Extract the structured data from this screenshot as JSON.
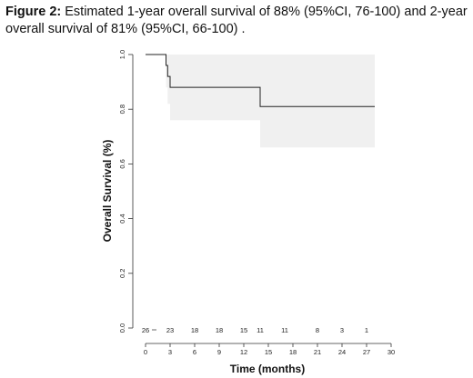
{
  "caption": {
    "label": "Figure 2:",
    "text": "Estimated 1-year overall survival of 88% (95%CI, 76-100) and 2-year overall survival of 81% (95%CI, 66-100) ."
  },
  "chart_data": {
    "type": "line",
    "title": "",
    "xlabel": "Time (months)",
    "ylabel": "Overall Survival (%)",
    "xlim": [
      0,
      30
    ],
    "ylim": [
      0,
      1
    ],
    "xticks": [
      "0",
      "3",
      "6",
      "9",
      "12",
      "15",
      "18",
      "21",
      "24",
      "27",
      "30"
    ],
    "yticks": [
      "0.0",
      "0.2",
      "0.4",
      "0.6",
      "0.8",
      "1.0"
    ],
    "grid": false,
    "legend": "none",
    "series": [
      {
        "step": "post",
        "x": [
          0,
          2.5,
          2.7,
          3.0,
          14.0,
          28.0
        ],
        "y": [
          1.0,
          0.96,
          0.92,
          0.88,
          0.81,
          0.81
        ],
        "ci_lower": [
          1.0,
          0.88,
          0.82,
          0.76,
          0.66,
          0.66
        ],
        "ci_upper": [
          1.0,
          1.0,
          1.0,
          1.0,
          1.0,
          1.0
        ]
      }
    ],
    "risk_table": {
      "times": [
        0,
        3,
        6,
        9,
        12,
        14,
        17,
        21,
        24,
        27
      ],
      "counts": [
        "26",
        "23",
        "18",
        "18",
        "15",
        "11",
        "11",
        "8",
        "3",
        "1"
      ]
    },
    "colors": {
      "line": "#222222",
      "ci_band": "#f0f0f0",
      "axis": "#333333"
    }
  }
}
